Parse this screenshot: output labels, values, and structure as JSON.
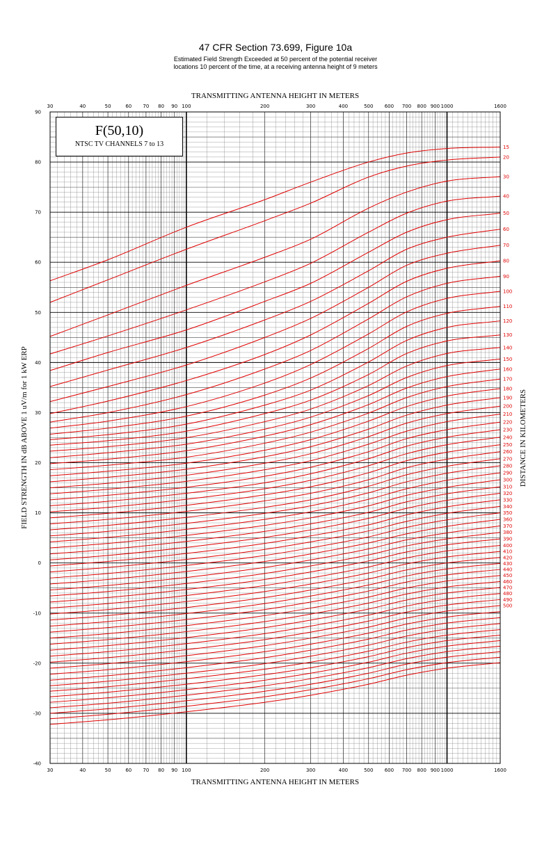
{
  "title": "47 CFR Section 73.699, Figure 10a",
  "subtitle_lines": [
    "Estimated Field Strength Exceeded at 50 percent of the potential receiver",
    "locations 10 percent of the time, at a receiving antenna height of 9 meters"
  ],
  "legend": {
    "main": "F(50,10)",
    "sub": "NTSC TV CHANNELS 7 to 13"
  },
  "colors": {
    "curve": "#e00000",
    "grid": "#000000"
  },
  "chart_data": {
    "type": "line",
    "xlabel": "TRANSMITTING ANTENNA HEIGHT IN METERS",
    "ylabel": "FIELD STRENGTH IN dB ABOVE 1 uV/m for 1 kW ERP",
    "series_axis_label": "DISTANCE IN KILOMETERS",
    "x_scale": "log",
    "xlim": [
      30,
      1600
    ],
    "ylim": [
      -40,
      90
    ],
    "x_ticks": [
      30,
      40,
      50,
      60,
      70,
      80,
      90,
      100,
      200,
      300,
      400,
      500,
      600,
      700,
      800,
      900,
      1000,
      1600
    ],
    "x_tick_labels": [
      "30",
      "40",
      "50",
      "60",
      "70",
      "80",
      "90",
      "100",
      "200",
      "300",
      "400",
      "500",
      "600",
      "700",
      "800",
      "900",
      "1000",
      "1600"
    ],
    "y_ticks": [
      -40,
      -30,
      -20,
      -10,
      0,
      10,
      20,
      30,
      40,
      50,
      60,
      70,
      80,
      90
    ],
    "y_tick_labels": [
      "-40",
      "-30",
      "-20",
      "-10",
      "0",
      "10",
      "20",
      "30",
      "40",
      "50",
      "60",
      "70",
      "80",
      "90"
    ],
    "grid": true,
    "x": [
      30,
      50,
      100,
      200,
      300,
      500,
      700,
      1000,
      1600
    ],
    "series": [
      {
        "name": "15",
        "values": [
          56.3,
          60.5,
          67.0,
          72.5,
          76.0,
          80.0,
          81.8,
          82.7,
          83.0
        ]
      },
      {
        "name": "20",
        "values": [
          52.0,
          56.5,
          62.6,
          68.3,
          71.8,
          77.0,
          79.2,
          80.4,
          81.0
        ]
      },
      {
        "name": "30",
        "values": [
          45.2,
          49.5,
          55.4,
          61.0,
          64.6,
          70.8,
          74.0,
          76.2,
          77.1
        ]
      },
      {
        "name": "40",
        "values": [
          41.7,
          45.3,
          50.5,
          56.1,
          59.8,
          66.0,
          69.8,
          72.2,
          73.2
        ]
      },
      {
        "name": "50",
        "values": [
          38.4,
          42.0,
          46.5,
          52.2,
          55.8,
          62.0,
          66.0,
          68.5,
          69.8
        ]
      },
      {
        "name": "60",
        "values": [
          35.2,
          38.5,
          43.0,
          48.5,
          52.2,
          58.3,
          62.6,
          65.0,
          66.6
        ]
      },
      {
        "name": "70",
        "values": [
          32.2,
          35.2,
          39.5,
          45.0,
          48.8,
          55.0,
          59.4,
          61.8,
          63.4
        ]
      },
      {
        "name": "80",
        "values": [
          29.8,
          32.3,
          36.4,
          41.6,
          45.5,
          51.8,
          56.2,
          58.8,
          60.3
        ]
      },
      {
        "name": "90",
        "values": [
          28.1,
          30.0,
          33.6,
          38.7,
          42.4,
          48.7,
          53.1,
          55.8,
          57.2
        ]
      },
      {
        "name": "100",
        "values": [
          26.9,
          28.3,
          31.2,
          35.9,
          39.6,
          45.7,
          50.1,
          52.8,
          54.2
        ]
      },
      {
        "name": "110",
        "values": [
          25.7,
          26.9,
          29.3,
          33.5,
          36.9,
          42.8,
          47.2,
          49.8,
          51.2
        ]
      },
      {
        "name": "120",
        "values": [
          24.6,
          25.6,
          27.7,
          31.5,
          34.5,
          40.1,
          44.4,
          47.0,
          48.3
        ]
      },
      {
        "name": "130",
        "values": [
          23.5,
          24.4,
          26.3,
          29.8,
          32.5,
          37.6,
          41.8,
          44.3,
          45.5
        ]
      },
      {
        "name": "140",
        "values": [
          22.3,
          23.2,
          25.0,
          28.2,
          30.7,
          35.4,
          39.3,
          41.8,
          43.0
        ]
      },
      {
        "name": "150",
        "values": [
          21.0,
          22.0,
          23.7,
          26.7,
          29.1,
          33.4,
          37.0,
          39.4,
          40.7
        ]
      },
      {
        "name": "160",
        "values": [
          19.8,
          20.7,
          22.4,
          25.3,
          27.6,
          31.6,
          34.9,
          37.2,
          38.7
        ]
      },
      {
        "name": "170",
        "values": [
          18.6,
          19.5,
          21.1,
          23.9,
          26.1,
          29.9,
          33.0,
          35.2,
          36.7
        ]
      },
      {
        "name": "180",
        "values": [
          17.4,
          18.3,
          19.9,
          22.5,
          24.6,
          28.3,
          31.2,
          33.3,
          34.8
        ]
      },
      {
        "name": "190",
        "values": [
          16.2,
          17.1,
          18.7,
          21.2,
          23.2,
          26.7,
          29.5,
          31.5,
          33.0
        ]
      },
      {
        "name": "200",
        "values": [
          15.0,
          15.9,
          17.5,
          19.9,
          21.8,
          25.2,
          27.9,
          29.8,
          31.3
        ]
      },
      {
        "name": "210",
        "values": [
          13.8,
          14.7,
          16.3,
          18.6,
          20.4,
          23.7,
          26.3,
          28.2,
          29.7
        ]
      },
      {
        "name": "220",
        "values": [
          12.6,
          13.5,
          15.1,
          17.3,
          19.1,
          22.2,
          24.8,
          26.6,
          28.1
        ]
      },
      {
        "name": "230",
        "values": [
          11.4,
          12.3,
          13.9,
          16.0,
          17.8,
          20.8,
          23.3,
          25.1,
          26.6
        ]
      },
      {
        "name": "240",
        "values": [
          10.2,
          11.1,
          12.7,
          14.8,
          16.5,
          19.4,
          21.8,
          23.6,
          25.1
        ]
      },
      {
        "name": "250",
        "values": [
          9.0,
          9.9,
          11.5,
          13.6,
          15.2,
          18.0,
          20.4,
          22.1,
          23.6
        ]
      },
      {
        "name": "260",
        "values": [
          7.8,
          8.7,
          10.3,
          12.4,
          13.9,
          16.6,
          19.0,
          20.7,
          22.2
        ]
      },
      {
        "name": "270",
        "values": [
          6.6,
          7.5,
          9.1,
          11.1,
          12.6,
          15.3,
          17.6,
          19.3,
          20.8
        ]
      },
      {
        "name": "280",
        "values": [
          5.4,
          6.3,
          7.9,
          9.9,
          11.4,
          14.0,
          16.2,
          17.9,
          19.4
        ]
      },
      {
        "name": "290",
        "values": [
          4.2,
          5.1,
          6.7,
          8.7,
          10.2,
          12.7,
          14.8,
          16.5,
          18.0
        ]
      },
      {
        "name": "300",
        "values": [
          3.0,
          3.9,
          5.5,
          7.5,
          9.0,
          11.4,
          13.5,
          15.1,
          16.6
        ]
      },
      {
        "name": "310",
        "values": [
          1.8,
          2.7,
          4.3,
          6.3,
          7.8,
          10.1,
          12.2,
          13.8,
          15.2
        ]
      },
      {
        "name": "320",
        "values": [
          0.6,
          1.5,
          3.1,
          5.1,
          6.6,
          8.9,
          10.9,
          12.5,
          13.9
        ]
      },
      {
        "name": "330",
        "values": [
          -0.6,
          0.3,
          1.9,
          3.9,
          5.4,
          7.6,
          9.6,
          11.2,
          12.6
        ]
      },
      {
        "name": "340",
        "values": [
          -1.8,
          -0.9,
          0.7,
          2.7,
          4.2,
          6.4,
          8.3,
          9.9,
          11.3
        ]
      },
      {
        "name": "350",
        "values": [
          -3.0,
          -2.1,
          -0.5,
          1.5,
          3.0,
          5.2,
          7.1,
          8.6,
          10.0
        ]
      },
      {
        "name": "360",
        "values": [
          -4.2,
          -3.3,
          -1.7,
          0.3,
          1.8,
          4.0,
          5.8,
          7.3,
          8.7
        ]
      },
      {
        "name": "370",
        "values": [
          -5.4,
          -4.5,
          -2.9,
          -0.9,
          0.6,
          2.8,
          4.6,
          6.0,
          7.4
        ]
      },
      {
        "name": "380",
        "values": [
          -6.6,
          -5.7,
          -4.1,
          -2.1,
          -0.6,
          1.6,
          3.4,
          4.8,
          6.1
        ]
      },
      {
        "name": "390",
        "values": [
          -7.8,
          -6.9,
          -5.3,
          -3.3,
          -1.8,
          0.4,
          2.2,
          3.6,
          4.8
        ]
      },
      {
        "name": "400",
        "values": [
          -9.0,
          -8.1,
          -6.5,
          -4.5,
          -3.0,
          -0.8,
          1.0,
          2.4,
          3.5
        ]
      },
      {
        "name": "410",
        "values": [
          -10.2,
          -9.3,
          -7.7,
          -5.7,
          -4.2,
          -2.0,
          -0.2,
          1.2,
          2.3
        ]
      },
      {
        "name": "420",
        "values": [
          -11.4,
          -10.5,
          -8.9,
          -6.9,
          -5.4,
          -3.2,
          -1.4,
          0.0,
          1.1
        ]
      },
      {
        "name": "430",
        "values": [
          -12.6,
          -11.7,
          -10.1,
          -8.1,
          -6.6,
          -4.4,
          -2.6,
          -1.2,
          -0.1
        ]
      },
      {
        "name": "440",
        "values": [
          -13.8,
          -12.9,
          -11.3,
          -9.3,
          -7.8,
          -5.6,
          -3.8,
          -2.4,
          -1.3
        ]
      },
      {
        "name": "450",
        "values": [
          -15.0,
          -14.1,
          -12.5,
          -10.5,
          -9.0,
          -6.8,
          -5.0,
          -3.6,
          -2.5
        ]
      },
      {
        "name": "460",
        "values": [
          -16.2,
          -15.3,
          -13.7,
          -11.7,
          -10.2,
          -8.0,
          -6.2,
          -4.8,
          -3.7
        ]
      },
      {
        "name": "470",
        "values": [
          -17.4,
          -16.5,
          -14.9,
          -12.9,
          -11.4,
          -9.2,
          -7.4,
          -6.0,
          -4.9
        ]
      },
      {
        "name": "480",
        "values": [
          -18.6,
          -17.7,
          -16.1,
          -14.1,
          -12.6,
          -10.4,
          -8.6,
          -7.2,
          -6.1
        ]
      },
      {
        "name": "490",
        "values": [
          -19.8,
          -18.9,
          -17.3,
          -15.3,
          -13.8,
          -11.6,
          -9.8,
          -8.4,
          -7.3
        ]
      },
      {
        "name": "500",
        "values": [
          -21.0,
          -20.1,
          -18.5,
          -16.5,
          -15.0,
          -12.8,
          -11.0,
          -9.6,
          -8.5
        ]
      },
      {
        "name": "",
        "values": [
          -22.2,
          -21.3,
          -19.7,
          -17.7,
          -16.2,
          -14.0,
          -12.2,
          -10.8,
          -9.7
        ]
      },
      {
        "name": "",
        "values": [
          -23.4,
          -22.5,
          -20.9,
          -18.9,
          -17.4,
          -15.2,
          -13.4,
          -12.0,
          -10.9
        ]
      },
      {
        "name": "",
        "values": [
          -24.5,
          -23.6,
          -22.0,
          -20.1,
          -18.6,
          -16.4,
          -14.6,
          -13.2,
          -12.1
        ]
      },
      {
        "name": "",
        "values": [
          -25.6,
          -24.7,
          -23.1,
          -21.2,
          -19.8,
          -17.6,
          -15.8,
          -14.4,
          -13.3
        ]
      },
      {
        "name": "",
        "values": [
          -26.7,
          -25.8,
          -24.2,
          -22.3,
          -20.9,
          -18.7,
          -16.9,
          -15.5,
          -14.4
        ]
      },
      {
        "name": "",
        "values": [
          -27.8,
          -26.9,
          -25.3,
          -23.4,
          -22.0,
          -19.8,
          -18.0,
          -16.6,
          -15.5
        ]
      },
      {
        "name": "",
        "values": [
          -28.9,
          -28.0,
          -26.4,
          -24.5,
          -23.1,
          -20.9,
          -19.1,
          -17.7,
          -16.6
        ]
      },
      {
        "name": "",
        "values": [
          -30.0,
          -29.1,
          -27.5,
          -25.6,
          -24.2,
          -22.0,
          -20.2,
          -18.8,
          -17.7
        ]
      },
      {
        "name": "",
        "values": [
          -31.1,
          -30.2,
          -28.6,
          -26.7,
          -25.3,
          -23.1,
          -21.3,
          -19.9,
          -18.8
        ]
      },
      {
        "name": "",
        "values": [
          -32.2,
          -31.3,
          -29.7,
          -27.8,
          -26.4,
          -24.2,
          -22.4,
          -21.0,
          -19.9
        ]
      }
    ]
  }
}
